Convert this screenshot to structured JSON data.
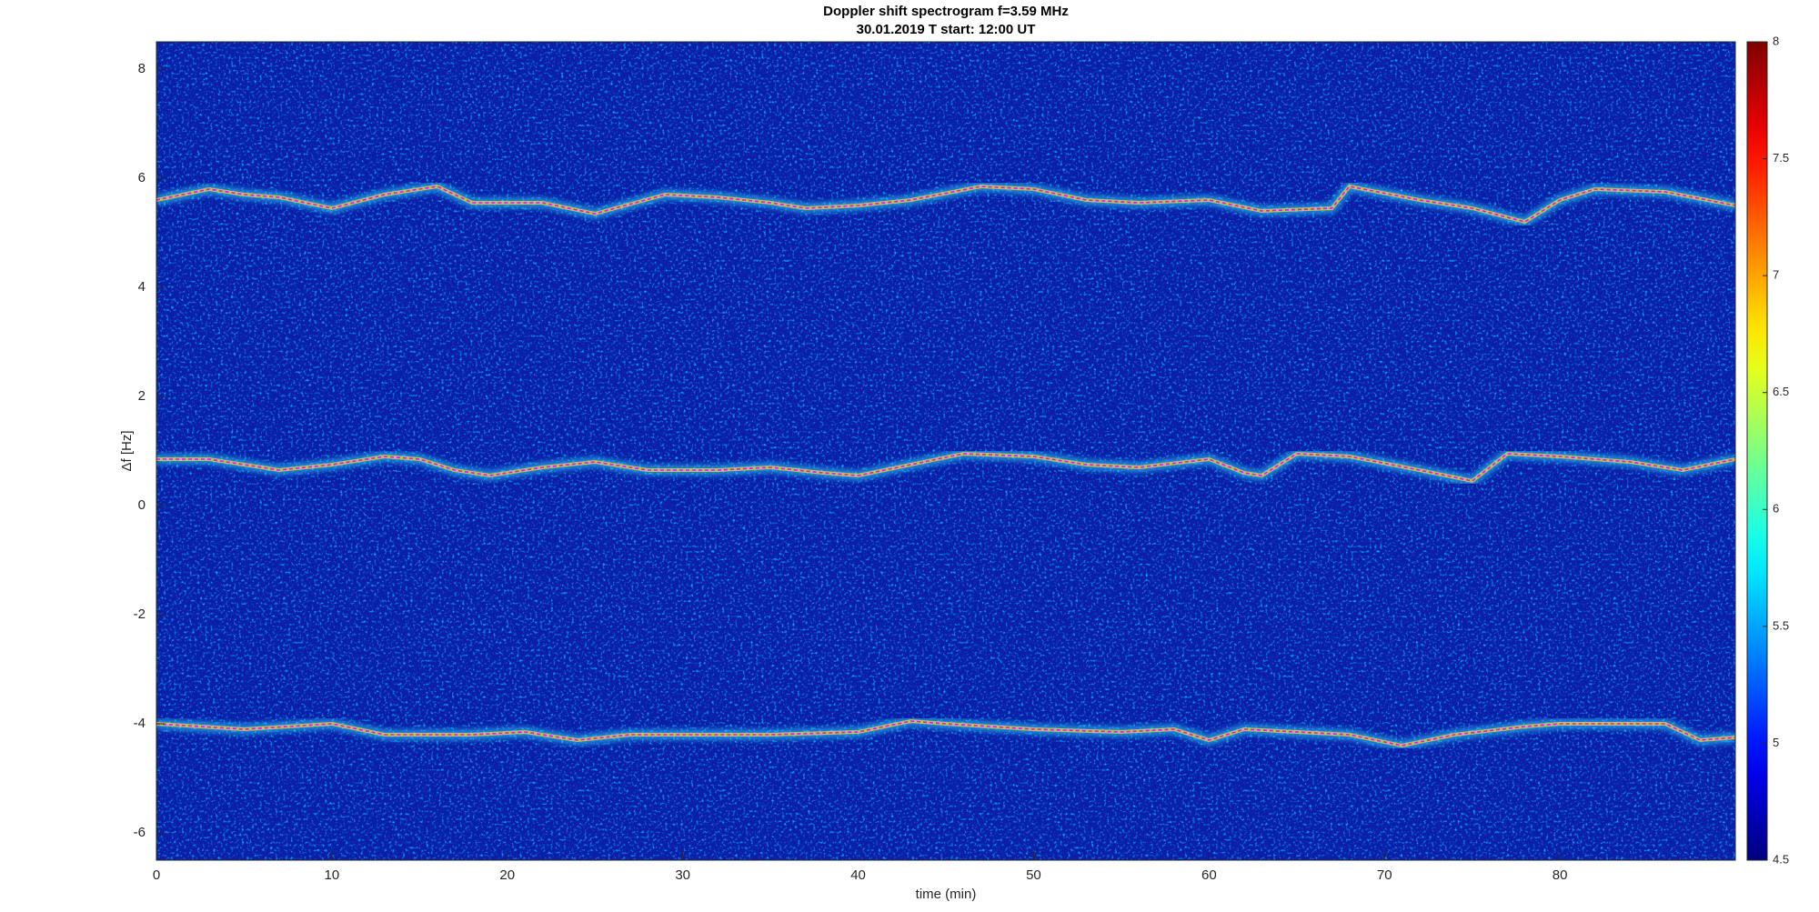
{
  "chart_data": {
    "type": "spectrogram",
    "title": "Doppler shift spectrogram f=3.59 MHz",
    "subtitle": "30.01.2019   T start: 12:00 UT",
    "xlabel": "time (min)",
    "ylabel": "Δf [Hz]",
    "xlim": [
      0,
      90
    ],
    "xticks": [
      0,
      10,
      20,
      30,
      40,
      50,
      60,
      70,
      80
    ],
    "ylim": [
      -6.5,
      8.5
    ],
    "yticks": [
      -6,
      -4,
      -2,
      0,
      2,
      4,
      6,
      8
    ],
    "colormap": "jet",
    "clim": [
      4.5,
      8
    ],
    "cticks": [
      4.5,
      5,
      5.5,
      6,
      6.5,
      7,
      7.5,
      8
    ],
    "series": [
      {
        "color": "#ff00ff",
        "x": [
          0,
          3,
          5,
          7,
          10,
          13,
          16,
          18,
          22,
          25,
          29,
          32,
          35,
          37,
          40,
          43,
          47,
          50,
          53,
          56,
          60,
          63,
          67,
          68,
          72,
          75,
          78,
          80,
          82,
          86,
          90
        ],
        "values": [
          5.6,
          5.8,
          5.7,
          5.65,
          5.45,
          5.7,
          5.85,
          5.55,
          5.55,
          5.35,
          5.7,
          5.65,
          5.55,
          5.45,
          5.5,
          5.6,
          5.85,
          5.8,
          5.6,
          5.55,
          5.6,
          5.4,
          5.45,
          5.85,
          5.6,
          5.45,
          5.2,
          5.6,
          5.8,
          5.75,
          5.5
        ]
      },
      {
        "color": "#ff00ff",
        "x": [
          0,
          3,
          7,
          10,
          13,
          15,
          17,
          19,
          22,
          25,
          28,
          32,
          35,
          38,
          40,
          43,
          46,
          50,
          53,
          56,
          60,
          62,
          63,
          65,
          68,
          72,
          75,
          77,
          80,
          84,
          87,
          90
        ],
        "values": [
          0.85,
          0.85,
          0.65,
          0.75,
          0.9,
          0.85,
          0.65,
          0.55,
          0.7,
          0.8,
          0.65,
          0.65,
          0.7,
          0.6,
          0.55,
          0.75,
          0.95,
          0.9,
          0.75,
          0.7,
          0.85,
          0.6,
          0.55,
          0.95,
          0.9,
          0.65,
          0.45,
          0.95,
          0.9,
          0.8,
          0.65,
          0.85
        ]
      },
      {
        "color": "#ff00ff",
        "x": [
          0,
          5,
          10,
          13,
          18,
          21,
          24,
          27,
          30,
          35,
          40,
          43,
          45,
          50,
          55,
          58,
          60,
          62,
          65,
          68,
          71,
          74,
          78,
          80,
          86,
          88,
          90
        ],
        "values": [
          -4.0,
          -4.1,
          -4.0,
          -4.2,
          -4.2,
          -4.15,
          -4.3,
          -4.2,
          -4.2,
          -4.2,
          -4.15,
          -3.95,
          -4.0,
          -4.1,
          -4.15,
          -4.1,
          -4.3,
          -4.1,
          -4.15,
          -4.2,
          -4.4,
          -4.2,
          -4.05,
          -4.0,
          -4.0,
          -4.3,
          -4.25
        ]
      }
    ]
  }
}
